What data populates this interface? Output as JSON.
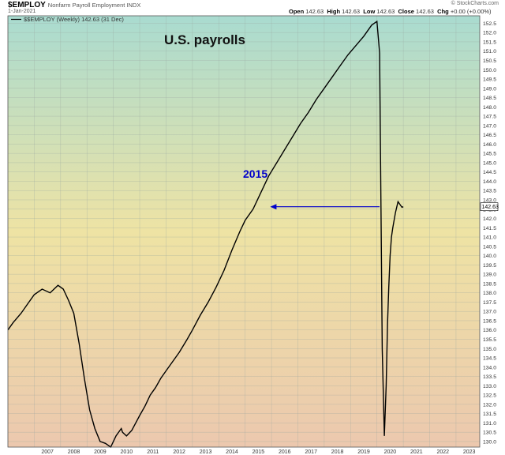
{
  "header": {
    "symbol": "$EMPLOY",
    "description": "Nonfarm Payroll Employment INDX",
    "date": "1-Jan-2021",
    "brand": "© StockCharts.com",
    "open_label": "Open",
    "open_value": "142.63",
    "high_label": "High",
    "high_value": "142.63",
    "low_label": "Low",
    "low_value": "142.63",
    "close_label": "Close",
    "close_value": "142.63",
    "chg_label": "Chg",
    "chg_value": "+0.00 (+0.00%)"
  },
  "chart_data": {
    "type": "line",
    "title": "U.S. payrolls",
    "legend": "$$EMPLOY (Weekly) 142.63 (31 Dec)",
    "annotation": {
      "text": "2015",
      "arrow_color": "#0000cc",
      "text_color": "#0000cc"
    },
    "last_value_label": "142.63",
    "ylim": [
      129.7,
      152.9
    ],
    "y_ticks": [
      "130.0",
      "130.5",
      "131.0",
      "131.5",
      "132.0",
      "132.5",
      "133.0",
      "133.5",
      "134.0",
      "134.5",
      "135.0",
      "135.5",
      "136.0",
      "136.5",
      "137.0",
      "137.5",
      "138.0",
      "138.5",
      "139.0",
      "139.5",
      "140.0",
      "140.5",
      "141.0",
      "141.5",
      "142.0",
      "142.5",
      "143.0",
      "143.5",
      "144.0",
      "144.5",
      "145.0",
      "145.5",
      "146.0",
      "146.5",
      "147.0",
      "147.5",
      "148.0",
      "148.5",
      "149.0",
      "149.5",
      "150.0",
      "150.5",
      "151.0",
      "151.5",
      "152.0",
      "152.5"
    ],
    "x_ticks": [
      "2007",
      "2008",
      "2009",
      "2010",
      "2011",
      "2012",
      "2013",
      "2014",
      "2015",
      "2016",
      "2017",
      "2018",
      "2019",
      "2020",
      "2021",
      "2022",
      "2023"
    ],
    "xlim": [
      2006.0,
      2023.9
    ],
    "colors": {
      "line": "#000000",
      "grid": "#9aa7a0",
      "bg_top": "#a9dbd0",
      "bg_mid": "#eee3a4",
      "bg_bottom": "#ecc8ae"
    },
    "series": [
      {
        "x": [
          2006.0,
          2006.2,
          2006.5,
          2006.8,
          2007.0,
          2007.3,
          2007.6,
          2007.9,
          2008.1,
          2008.3,
          2008.5,
          2008.7,
          2008.9,
          2009.1,
          2009.3,
          2009.5,
          2009.7,
          2009.9,
          2010.1,
          2010.3,
          2010.35,
          2010.5,
          2010.7,
          2010.85,
          2011.0,
          2011.2,
          2011.4,
          2011.6,
          2011.8,
          2012.0,
          2012.2,
          2012.5,
          2012.8,
          2013.0,
          2013.3,
          2013.6,
          2013.9,
          2014.2,
          2014.5,
          2014.8,
          2015.0,
          2015.3,
          2015.6,
          2015.9,
          2016.2,
          2016.5,
          2016.8,
          2017.1,
          2017.4,
          2017.7,
          2018.0,
          2018.3,
          2018.6,
          2018.9,
          2019.2,
          2019.5,
          2019.8,
          2020.0,
          2020.1,
          2020.2,
          2020.28,
          2020.35,
          2020.4,
          2020.45,
          2020.5,
          2020.55,
          2020.6,
          2020.7,
          2020.8,
          2020.9,
          2020.95,
          2021.0
        ],
        "values": [
          136.0,
          136.4,
          136.9,
          137.5,
          137.9,
          138.2,
          138.0,
          138.4,
          138.2,
          137.6,
          136.9,
          135.3,
          133.4,
          131.7,
          130.7,
          130.0,
          129.9,
          129.7,
          130.3,
          130.7,
          130.5,
          130.3,
          130.6,
          131.0,
          131.4,
          131.9,
          132.5,
          132.9,
          133.4,
          133.8,
          134.2,
          134.8,
          135.5,
          136.0,
          136.8,
          137.5,
          138.3,
          139.2,
          140.3,
          141.3,
          141.9,
          142.5,
          143.4,
          144.3,
          145.0,
          145.7,
          146.4,
          147.1,
          147.7,
          148.4,
          149.0,
          149.6,
          150.2,
          150.8,
          151.3,
          151.8,
          152.4,
          152.6,
          150.9,
          135.0,
          130.3,
          133.0,
          136.3,
          138.3,
          140.0,
          141.0,
          141.5,
          142.3,
          142.9,
          142.7,
          142.6,
          142.63
        ]
      }
    ]
  }
}
